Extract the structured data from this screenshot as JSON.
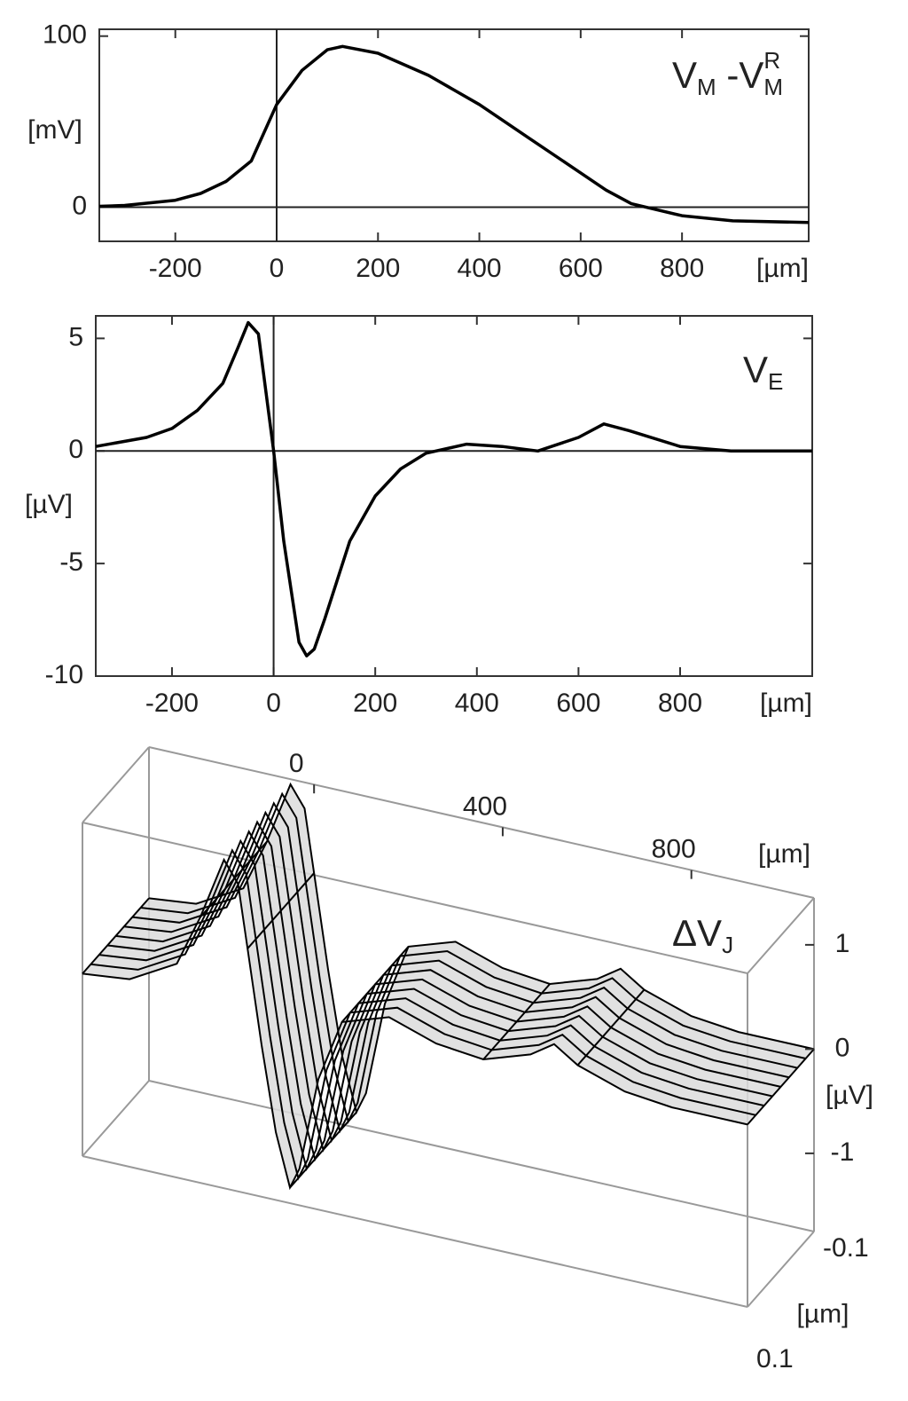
{
  "chart_data": [
    {
      "type": "line",
      "color": "#000000",
      "zero_lines": true,
      "annotation": [
        {
          "text": "V"
        },
        {
          "text": "M",
          "shift": "sub"
        },
        {
          "text": " -V"
        },
        {
          "text": "M",
          "shift": "sub"
        },
        {
          "text": "R",
          "shift": "super"
        }
      ],
      "x_label": "[µm]",
      "y_label": "[mV]",
      "x": [
        -350,
        -300,
        -200,
        -150,
        -100,
        -50,
        0,
        50,
        100,
        130,
        200,
        300,
        400,
        500,
        600,
        650,
        700,
        800,
        900,
        1050
      ],
      "values": [
        0.5,
        1,
        4,
        8,
        15,
        27,
        60,
        80,
        92,
        94,
        90,
        77,
        60,
        40,
        20,
        10,
        2,
        -5,
        -8,
        -9
      ],
      "xlim": [
        -350,
        1050
      ],
      "ylim": [
        -20,
        104
      ],
      "xticks": [
        -200,
        0,
        200,
        400,
        600,
        800
      ],
      "yticks": [
        0,
        100
      ]
    },
    {
      "type": "line",
      "color": "#000000",
      "zero_lines": true,
      "annotation": [
        {
          "text": "V"
        },
        {
          "text": "E",
          "shift": "sub"
        }
      ],
      "x_label": "[µm]",
      "y_label": "[µV]",
      "x": [
        -350,
        -250,
        -200,
        -150,
        -100,
        -70,
        -50,
        -30,
        0,
        20,
        50,
        65,
        80,
        100,
        150,
        200,
        250,
        300,
        380,
        450,
        520,
        600,
        650,
        700,
        800,
        900,
        1060
      ],
      "values": [
        0.2,
        0.6,
        1,
        1.8,
        3,
        4.6,
        5.7,
        5.2,
        0,
        -4,
        -8.5,
        -9.1,
        -8.8,
        -7.5,
        -4,
        -2,
        -0.8,
        -0.1,
        0.3,
        0.2,
        0,
        0.6,
        1.2,
        0.9,
        0.2,
        0,
        0
      ],
      "xlim": [
        -350,
        1060
      ],
      "ylim": [
        -10,
        6
      ],
      "xticks": [
        -200,
        0,
        200,
        400,
        600,
        800
      ],
      "yticks": [
        -10,
        -5,
        0,
        5
      ]
    },
    {
      "type": "surface3d",
      "color": "#000000",
      "annotation": [
        {
          "text": "ΔV"
        },
        {
          "text": "J",
          "shift": "sub"
        }
      ],
      "x_label": "[µm]",
      "y_label": "[µm]",
      "z_label": "[µV]",
      "x": [
        -350,
        -250,
        -150,
        -100,
        -50,
        -20,
        0,
        30,
        60,
        90,
        110,
        150,
        200,
        300,
        400,
        500,
        600,
        650,
        700,
        800,
        900,
        1060
      ],
      "values": [
        0,
        0.05,
        0.3,
        0.8,
        1.4,
        1.2,
        0.6,
        -0.3,
        -1.1,
        -1.6,
        -1.4,
        -0.5,
        0.1,
        0.25,
        0.1,
        0.05,
        0.2,
        0.35,
        0.2,
        0.05,
        0,
        0
      ],
      "xlim": [
        -350,
        1060
      ],
      "ylim": [
        -0.1,
        0.1
      ],
      "zlim": [
        -1.75,
        1.45
      ],
      "xticks": [
        0,
        400,
        800
      ],
      "yticks": [
        -0.1,
        0.1
      ],
      "zticks": [
        -1,
        0,
        1
      ]
    }
  ]
}
